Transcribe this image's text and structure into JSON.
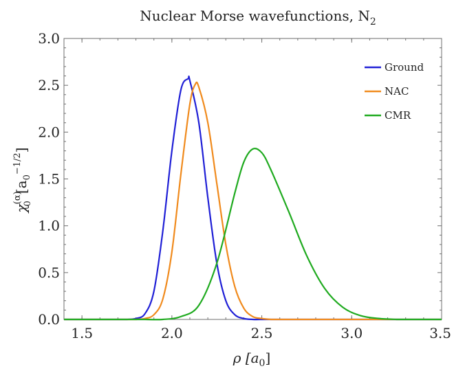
{
  "chart_data": {
    "type": "line",
    "title": "Nuclear Morse wavefunctions, N",
    "title_subscript": "2",
    "xlabel": "ρ [a",
    "xlabel_subscript": "0",
    "xlabel_suffix": "]",
    "ylabel_main": "χ",
    "ylabel_sub": "0",
    "ylabel_sup": "(α)",
    "ylabel_unit": "[a",
    "ylabel_unit_sub": "0",
    "ylabel_unit_sup": "−1/2",
    "ylabel_unit_close": "]",
    "xlim": [
      1.4,
      3.5
    ],
    "ylim": [
      0.0,
      3.0
    ],
    "x_ticks": [
      1.5,
      2.0,
      2.5,
      3.0,
      3.5
    ],
    "x_tick_labels": [
      "1.5",
      "2.0",
      "2.5",
      "3.0",
      "3.5"
    ],
    "y_ticks": [
      0.0,
      0.5,
      1.0,
      1.5,
      2.0,
      2.5,
      3.0
    ],
    "y_tick_labels": [
      "0.0",
      "0.5",
      "1.0",
      "1.5",
      "2.0",
      "2.5",
      "3.0"
    ],
    "grid": false,
    "legend_position": "top-right",
    "series": [
      {
        "name": "Ground",
        "color": "#1f1fd6",
        "x": [
          1.75,
          1.8,
          1.85,
          1.9,
          1.95,
          2.0,
          2.05,
          2.09,
          2.1,
          2.15,
          2.2,
          2.25,
          2.3,
          2.35,
          2.4,
          2.45,
          2.5
        ],
        "y": [
          0.0,
          0.01,
          0.06,
          0.3,
          0.95,
          1.8,
          2.45,
          2.57,
          2.55,
          2.1,
          1.3,
          0.6,
          0.2,
          0.05,
          0.01,
          0.0,
          0.0
        ]
      },
      {
        "name": "NAC",
        "color": "#f08a1c",
        "x": [
          1.8,
          1.85,
          1.9,
          1.95,
          2.0,
          2.05,
          2.1,
          2.13,
          2.15,
          2.2,
          2.25,
          2.3,
          2.35,
          2.4,
          2.45,
          2.5,
          2.55
        ],
        "y": [
          0.0,
          0.01,
          0.05,
          0.22,
          0.72,
          1.55,
          2.3,
          2.51,
          2.48,
          2.1,
          1.45,
          0.8,
          0.35,
          0.12,
          0.03,
          0.01,
          0.0
        ]
      },
      {
        "name": "CMR",
        "color": "#1faa1f",
        "x": [
          1.85,
          1.95,
          2.05,
          2.15,
          2.25,
          2.35,
          2.4,
          2.45,
          2.5,
          2.55,
          2.65,
          2.75,
          2.85,
          2.95,
          3.05,
          3.15,
          3.25
        ],
        "y": [
          0.0,
          0.0,
          0.03,
          0.15,
          0.6,
          1.35,
          1.68,
          1.82,
          1.78,
          1.6,
          1.15,
          0.68,
          0.33,
          0.13,
          0.04,
          0.01,
          0.0
        ]
      }
    ]
  }
}
